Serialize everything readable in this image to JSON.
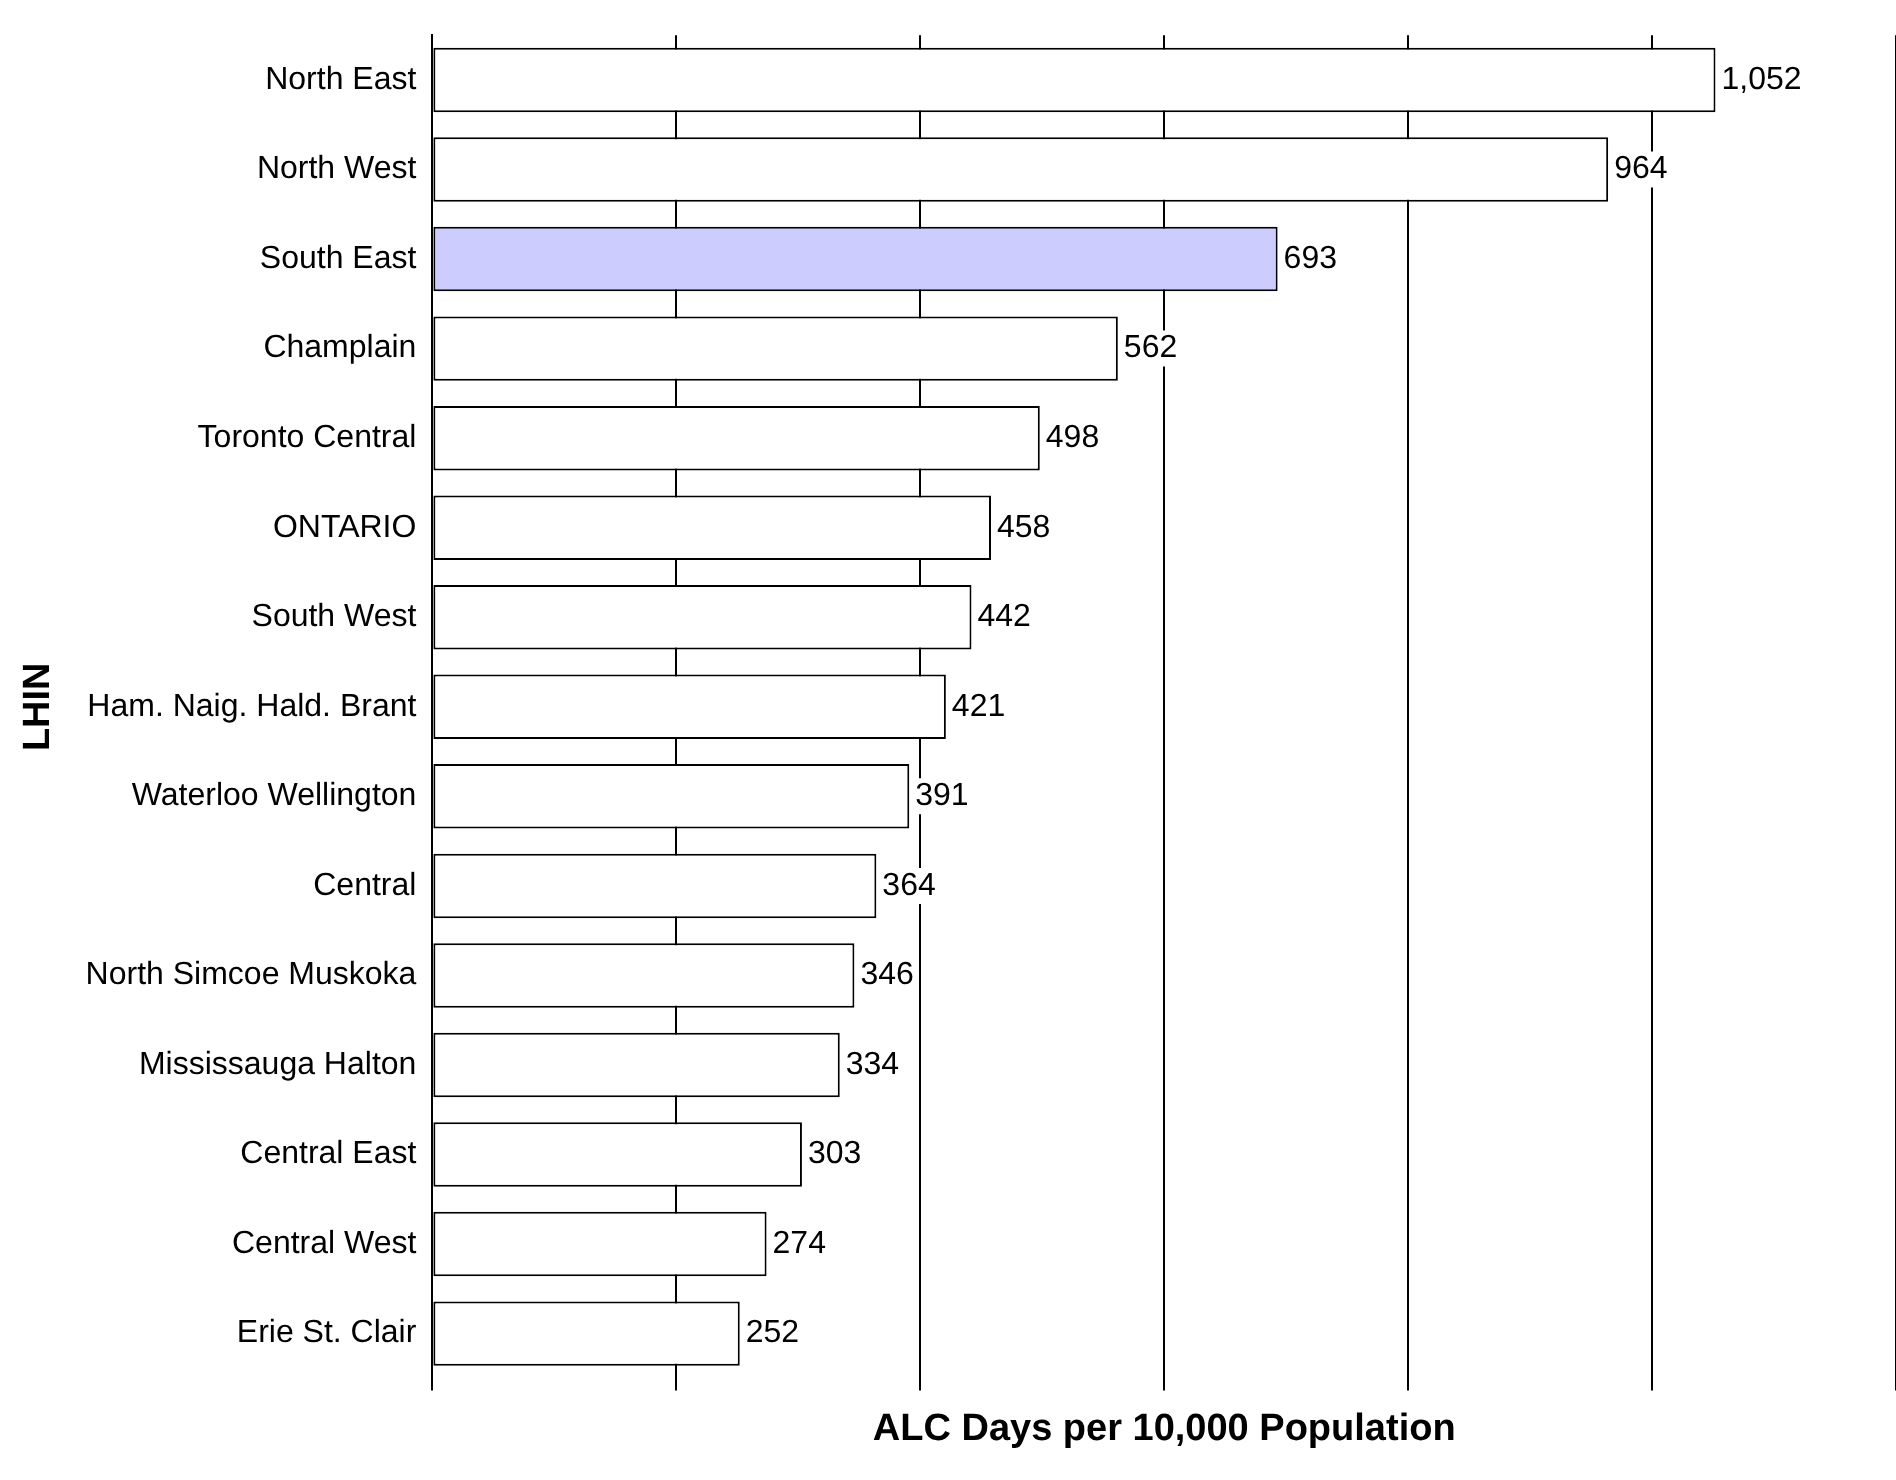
{
  "chart_data": {
    "type": "bar",
    "orientation": "horizontal",
    "xlabel": "ALC Days per 10,000 Population",
    "ylabel": "LHIN",
    "categories": [
      "North East",
      "North West",
      "South East",
      "Champlain",
      "Toronto Central",
      "ONTARIO",
      "South West",
      "Ham. Naig. Hald. Brant",
      "Waterloo Wellington",
      "Central",
      "North Simcoe Muskoka",
      "Mississauga Halton",
      "Central East",
      "Central West",
      "Erie St. Clair"
    ],
    "values": [
      1052,
      964,
      693,
      562,
      498,
      458,
      442,
      421,
      391,
      364,
      346,
      334,
      303,
      274,
      252
    ],
    "colors": [
      "#ffffff",
      "#ffffff",
      "#ccccff",
      "#ffffff",
      "#ffffff",
      "#ffffff",
      "#ffffff",
      "#ffffff",
      "#ffffff",
      "#ffffff",
      "#ffffff",
      "#ffffff",
      "#ffffff",
      "#ffffff",
      "#ffffff"
    ],
    "xlim": [
      0,
      1200
    ],
    "xticks": [
      {
        "value": 0,
        "label": null
      },
      {
        "value": 200,
        "label": null
      },
      {
        "value": 400,
        "label": null
      },
      {
        "value": 600,
        "label": null
      },
      {
        "value": 800,
        "label": null
      },
      {
        "value": 1000,
        "label": null
      },
      {
        "value": 1200,
        "label": null
      }
    ],
    "value_labels": [
      "1,052",
      "964",
      "693",
      "562",
      "498",
      "458",
      "442",
      "421",
      "391",
      "364",
      "346",
      "334",
      "303",
      "274",
      "252"
    ],
    "grid": "x",
    "tick_labels": "y",
    "legend": false
  }
}
